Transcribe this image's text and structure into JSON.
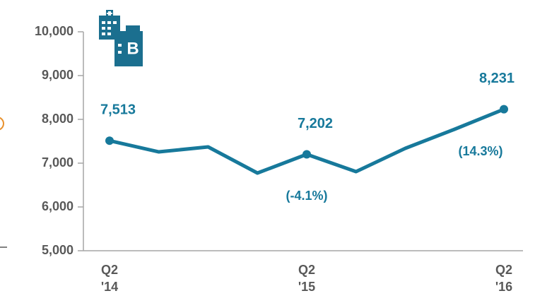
{
  "chart_data": {
    "type": "line",
    "categories": [
      "Q2 '14",
      null,
      null,
      null,
      "Q2 '15",
      null,
      null,
      null,
      "Q2 '16"
    ],
    "series": [
      {
        "color": "#17799b",
        "values": [
          7513,
          7258,
          7371,
          6774,
          7202,
          6806,
          7339,
          7774,
          8231
        ],
        "value_labels": [
          "7,513",
          null,
          null,
          null,
          "7,202",
          null,
          null,
          null,
          "8,231"
        ]
      }
    ],
    "annotations": [
      "(-4.1%)",
      "(14.3%)"
    ],
    "ylim": [
      5000,
      10000
    ],
    "yticks": [
      {
        "value": 5000,
        "label": "5,000"
      },
      {
        "value": 6000,
        "label": "6,000"
      },
      {
        "value": 7000,
        "label": "7,000"
      },
      {
        "value": 8000,
        "label": "8,000"
      },
      {
        "value": 9000,
        "label": "9,000"
      },
      {
        "value": 10000,
        "label": "10,000"
      }
    ]
  }
}
